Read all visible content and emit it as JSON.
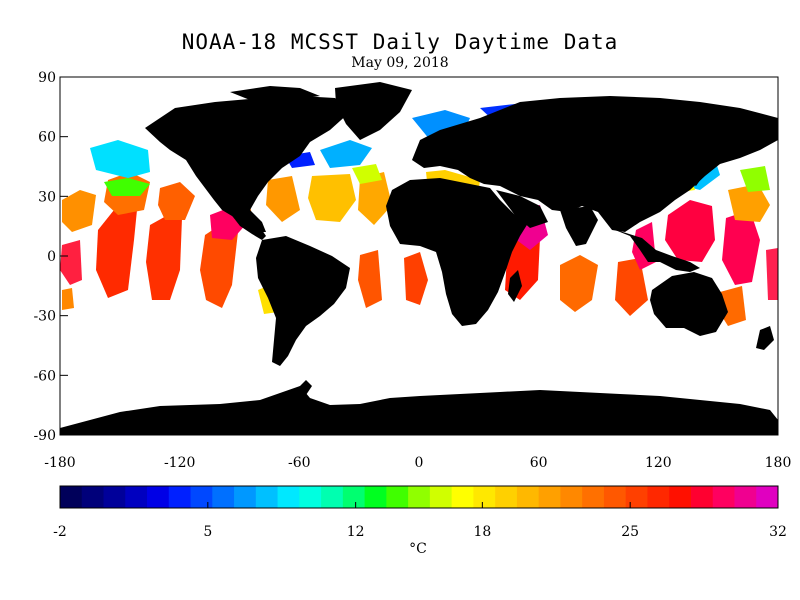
{
  "header": {
    "title": "NOAA-18 MCSST Daily Daytime Data",
    "subtitle": "May 09, 2018"
  },
  "map": {
    "lon_range": [
      -180,
      180
    ],
    "lat_range": [
      -90,
      90
    ],
    "lon_ticks": [
      "-180",
      "-120",
      "-60",
      "0",
      "60",
      "120",
      "180"
    ],
    "lat_ticks": [
      "90",
      "60",
      "30",
      "0",
      "-30",
      "-60",
      "-90"
    ],
    "land_color": "#000000",
    "no_data_color": "#ffffff"
  },
  "colorbar": {
    "min": -2,
    "max": 32,
    "tick_labels": [
      "-2",
      "5",
      "12",
      "18",
      "25",
      "32"
    ],
    "unit": "°C",
    "colors": [
      "#00005a",
      "#00007a",
      "#00009a",
      "#0000c0",
      "#0000e6",
      "#0020ff",
      "#0048ff",
      "#0070ff",
      "#0098ff",
      "#00c0ff",
      "#00e8ff",
      "#00ffe0",
      "#00ffb0",
      "#00ff70",
      "#00ff20",
      "#40ff00",
      "#90ff00",
      "#d0ff00",
      "#ffff00",
      "#ffe800",
      "#ffd000",
      "#ffb800",
      "#ffa000",
      "#ff8800",
      "#ff7000",
      "#ff5800",
      "#ff4000",
      "#ff2800",
      "#ff1000",
      "#ff0030",
      "#ff0060",
      "#f00090",
      "#e000c0"
    ]
  }
}
